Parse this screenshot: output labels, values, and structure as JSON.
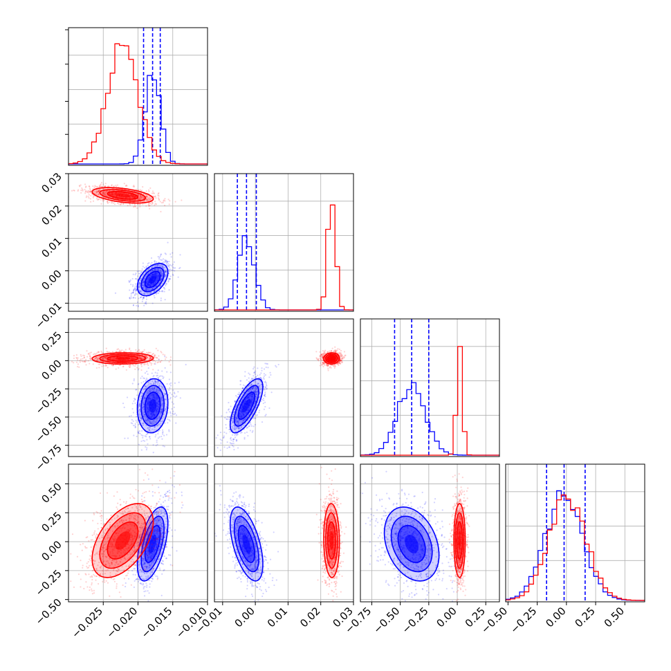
{
  "colors": {
    "blue": "#0000ff",
    "red": "#ff0000",
    "grid": "#b0b0b0"
  },
  "chart_data": {
    "type": "corner",
    "grid": true,
    "parameters": [
      {
        "range": [
          -0.03,
          -0.01
        ],
        "ticks": [
          -0.025,
          -0.02,
          -0.015,
          -0.01
        ],
        "tick_labels": [
          "−0.025",
          "−0.020",
          "−0.015",
          "−0.010"
        ]
      },
      {
        "range": [
          -0.0125,
          0.03
        ],
        "ticks": [
          -0.01,
          0.0,
          0.01,
          0.02,
          0.03
        ],
        "tick_labels": [
          "−0.01",
          "0.00",
          "0.01",
          "0.02",
          "0.03"
        ]
      },
      {
        "range": [
          -0.85,
          0.37
        ],
        "ticks": [
          -0.75,
          -0.5,
          -0.25,
          0.0,
          0.25
        ],
        "tick_labels": [
          "−0.75",
          "−0.50",
          "−0.25",
          "0.00",
          "0.25"
        ]
      },
      {
        "range": [
          -0.52,
          0.67
        ],
        "ticks": [
          -0.5,
          -0.25,
          0.0,
          0.25,
          0.5
        ],
        "tick_labels": [
          "−0.50",
          "−0.25",
          "0.00",
          "0.25",
          "0.50"
        ]
      }
    ],
    "series": [
      {
        "color": "blue",
        "mean": [
          -0.0179,
          -0.0027,
          -0.4,
          -0.02
        ],
        "sd": [
          0.0011,
          0.0025,
          0.12,
          0.16
        ],
        "corr": [
          [
            1,
            0.45,
            0.1,
            0.55
          ],
          [
            0.45,
            1,
            0.7,
            -0.55
          ],
          [
            0.1,
            0.7,
            1,
            -0.3
          ],
          [
            0.55,
            -0.55,
            -0.3,
            1
          ]
        ],
        "quantile_lines": [
          [
            -0.0192,
            -0.0179,
            -0.0168
          ],
          [
            -0.0055,
            -0.0027,
            0.0003
          ],
          [
            -0.55,
            -0.4,
            -0.25
          ],
          [
            -0.17,
            -0.02,
            0.16
          ]
        ]
      },
      {
        "color": "red",
        "mean": [
          -0.0222,
          0.0233,
          0.02,
          0.01
        ],
        "sd": [
          0.0022,
          0.0012,
          0.025,
          0.16
        ],
        "corr": [
          [
            1,
            -0.45,
            0.05,
            0.5
          ],
          [
            -0.45,
            1,
            0.05,
            -0.05
          ],
          [
            0.05,
            0.05,
            1,
            0.0
          ],
          [
            0.5,
            -0.05,
            0.0,
            1
          ]
        ],
        "quantile_lines": []
      }
    ]
  }
}
